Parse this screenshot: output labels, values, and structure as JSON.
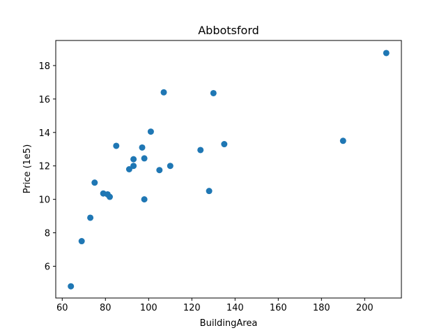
{
  "chart_data": {
    "type": "scatter",
    "title": "Abbotsford",
    "xlabel": "BuildingArea",
    "ylabel": "Price (1e5)",
    "xlim": [
      57,
      217
    ],
    "ylim": [
      4.1,
      19.5
    ],
    "xticks": [
      60,
      80,
      100,
      120,
      140,
      160,
      180,
      200
    ],
    "yticks": [
      6,
      8,
      10,
      12,
      14,
      16,
      18
    ],
    "grid": false,
    "color": "#1f77b4",
    "series": [
      {
        "points": [
          {
            "x": 64,
            "y": 4.8
          },
          {
            "x": 69,
            "y": 7.5
          },
          {
            "x": 73,
            "y": 8.9
          },
          {
            "x": 75,
            "y": 11.0
          },
          {
            "x": 79,
            "y": 10.35
          },
          {
            "x": 81,
            "y": 10.3
          },
          {
            "x": 82,
            "y": 10.15
          },
          {
            "x": 85,
            "y": 13.2
          },
          {
            "x": 91,
            "y": 11.8
          },
          {
            "x": 93,
            "y": 12.0
          },
          {
            "x": 93,
            "y": 12.4
          },
          {
            "x": 97,
            "y": 13.1
          },
          {
            "x": 98,
            "y": 12.45
          },
          {
            "x": 98,
            "y": 10.0
          },
          {
            "x": 101,
            "y": 14.05
          },
          {
            "x": 105,
            "y": 11.75
          },
          {
            "x": 107,
            "y": 16.4
          },
          {
            "x": 110,
            "y": 12.0
          },
          {
            "x": 124,
            "y": 12.95
          },
          {
            "x": 128,
            "y": 10.5
          },
          {
            "x": 130,
            "y": 16.35
          },
          {
            "x": 135,
            "y": 13.3
          },
          {
            "x": 190,
            "y": 13.5
          },
          {
            "x": 210,
            "y": 18.75
          }
        ]
      }
    ]
  }
}
